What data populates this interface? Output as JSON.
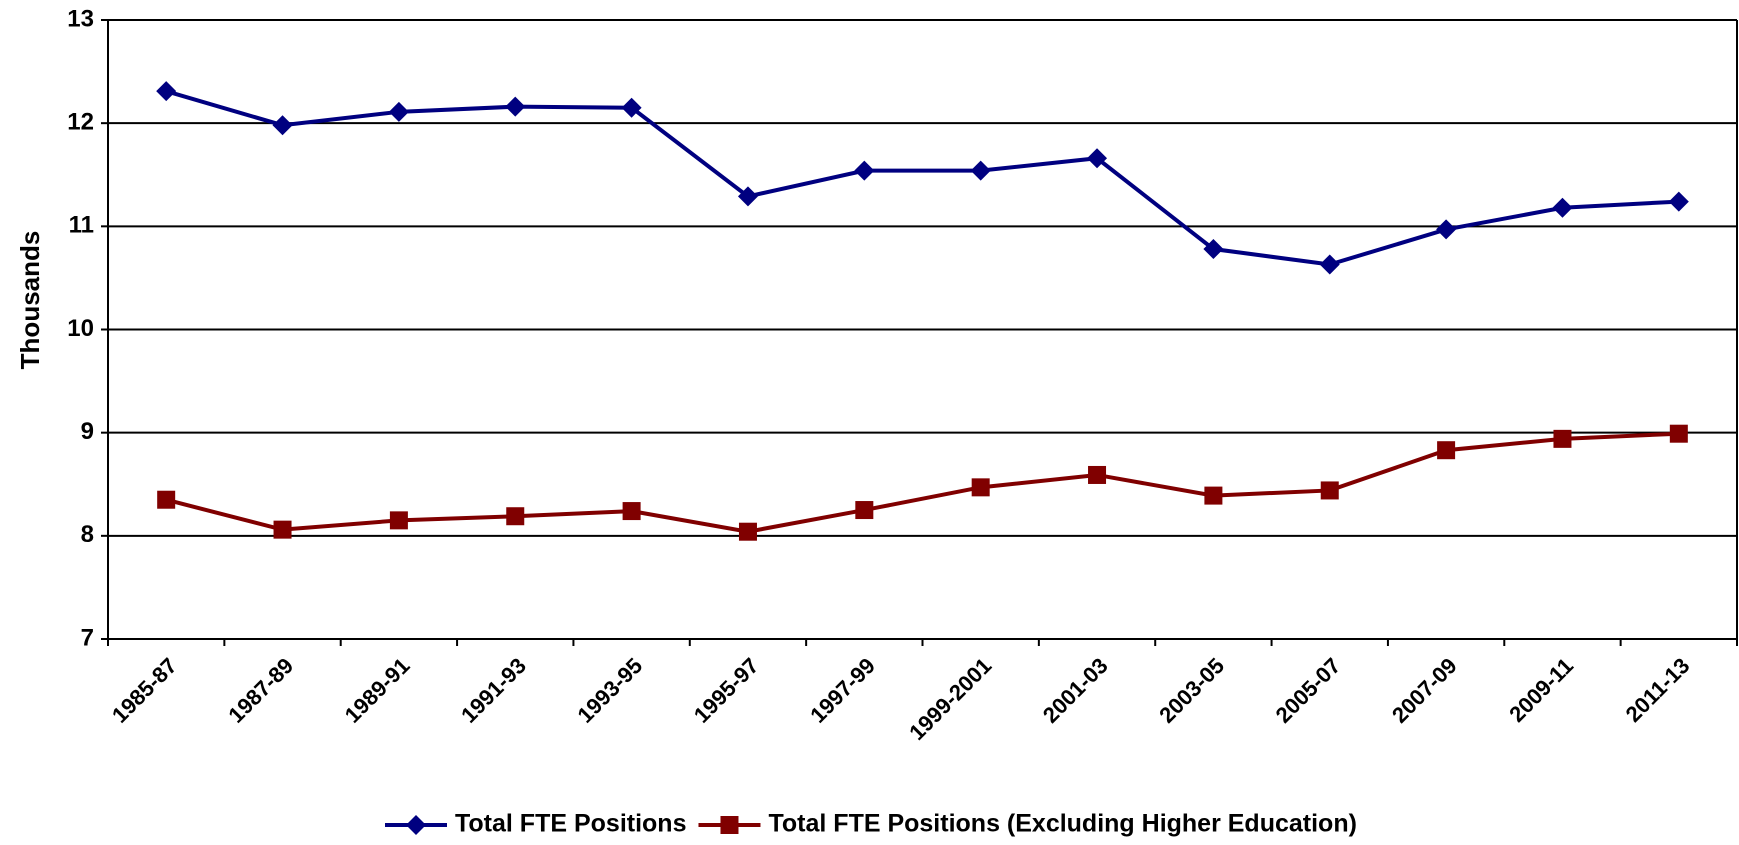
{
  "chart_data": {
    "type": "line",
    "y_label": "Thousands",
    "categories": [
      "1985-87",
      "1987-89",
      "1989-91",
      "1991-93",
      "1993-95",
      "1995-97",
      "1997-99",
      "1999-2001",
      "2001-03",
      "2003-05",
      "2005-07",
      "2007-09",
      "2009-11",
      "2011-13"
    ],
    "series": [
      {
        "name": "Total FTE Positions",
        "color": "#000080",
        "marker": "diamond",
        "values": [
          12.31,
          11.98,
          12.11,
          12.16,
          12.15,
          11.29,
          11.54,
          11.54,
          11.66,
          10.78,
          10.63,
          10.97,
          11.18,
          11.24
        ]
      },
      {
        "name": "Total FTE Positions (Excluding Higher Education)",
        "color": "#800000",
        "marker": "square",
        "values": [
          8.35,
          8.06,
          8.15,
          8.19,
          8.24,
          8.04,
          8.25,
          8.47,
          8.59,
          8.39,
          8.44,
          8.83,
          8.94,
          8.99
        ]
      }
    ],
    "ylim": [
      7,
      13
    ],
    "yticks": [
      7,
      8,
      9,
      10,
      11,
      12,
      13
    ],
    "grid": true,
    "legend": "bottom"
  }
}
